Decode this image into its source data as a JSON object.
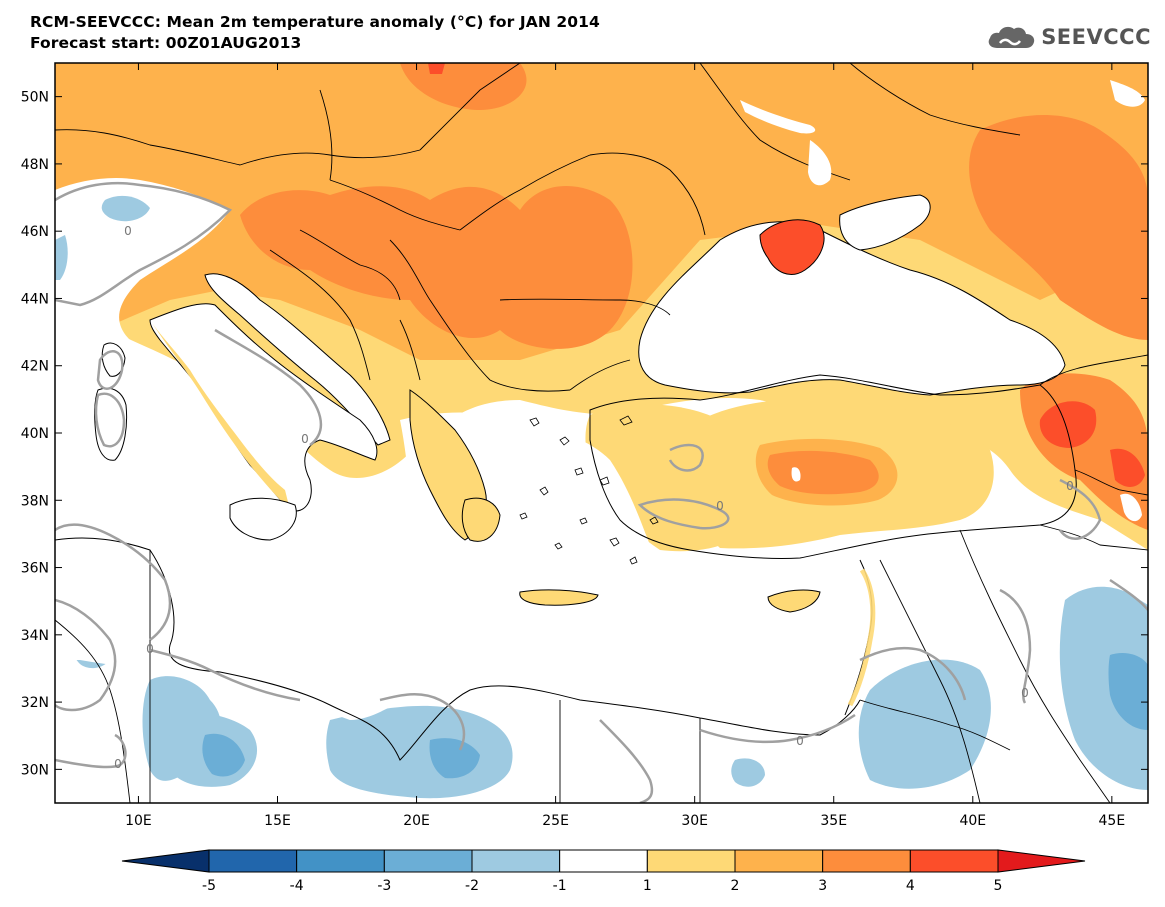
{
  "title": {
    "line1": "RCM-SEEVCCC: Mean 2m temperature anomaly (°C) for JAN 2014",
    "line2": "Forecast start: 00Z01AUG2013"
  },
  "logo": {
    "text": "SEEVCCC",
    "icon": "cloud-icon"
  },
  "axes": {
    "lat_labels": [
      "50N",
      "48N",
      "46N",
      "44N",
      "42N",
      "40N",
      "38N",
      "36N",
      "34N",
      "32N",
      "30N"
    ],
    "lat_values": [
      50,
      48,
      46,
      44,
      42,
      40,
      38,
      36,
      34,
      32,
      30
    ],
    "lon_labels": [
      "10E",
      "15E",
      "20E",
      "25E",
      "30E",
      "35E",
      "40E",
      "45E"
    ],
    "lon_values": [
      10,
      15,
      20,
      25,
      30,
      35,
      40,
      45
    ],
    "lon_range": [
      7,
      46.3
    ],
    "lat_range": [
      29,
      51
    ]
  },
  "contour_labels": [
    "0",
    "0",
    "0",
    "0",
    "0",
    "0",
    "0",
    "0"
  ],
  "colorbar": {
    "levels": [
      "-5",
      "-4",
      "-3",
      "-2",
      "-1",
      "1",
      "2",
      "3",
      "4",
      "5"
    ],
    "colors": [
      "#08306b",
      "#2166ac",
      "#4292c6",
      "#6baed6",
      "#9ecae1",
      "#ffffff",
      "#fed976",
      "#feb24c",
      "#fd8d3c",
      "#fc4e2a",
      "#e31a1c"
    ]
  },
  "palette": {
    "water": "#ffffff",
    "neutral": "#ffffff",
    "light_orange": "#fed976",
    "orange": "#feb24c",
    "dark_orange": "#fd8d3c",
    "red_orange": "#fc4e2a",
    "red": "#e31a1c",
    "light_blue": "#9ecae1",
    "blue": "#6baed6",
    "contour": "#a0a0a0",
    "border": "#000000"
  }
}
